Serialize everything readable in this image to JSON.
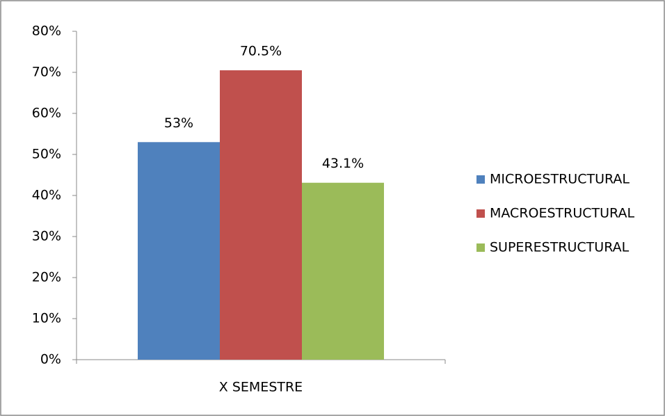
{
  "chart_data": {
    "type": "bar",
    "categories": [
      "X SEMESTRE"
    ],
    "series": [
      {
        "name": "MICROESTRUCTURAL",
        "color": "#4f81bd",
        "values": [
          53
        ],
        "value_labels": [
          "53%"
        ]
      },
      {
        "name": "MACROESTRUCTURAL",
        "color": "#c0504d",
        "values": [
          70.5
        ],
        "value_labels": [
          "70.5%"
        ]
      },
      {
        "name": "SUPERESTRUCTURAL",
        "color": "#9bbb59",
        "values": [
          43.1
        ],
        "value_labels": [
          "43.1%"
        ]
      }
    ],
    "ylim": [
      0,
      80
    ],
    "yticks": [
      {
        "value": 0,
        "label": "0%"
      },
      {
        "value": 10,
        "label": "10%"
      },
      {
        "value": 20,
        "label": "20%"
      },
      {
        "value": 30,
        "label": "30%"
      },
      {
        "value": 40,
        "label": "40%"
      },
      {
        "value": 50,
        "label": "50%"
      },
      {
        "value": 60,
        "label": "60%"
      },
      {
        "value": 70,
        "label": "70%"
      },
      {
        "value": 80,
        "label": "80%"
      }
    ],
    "legend": "right"
  }
}
